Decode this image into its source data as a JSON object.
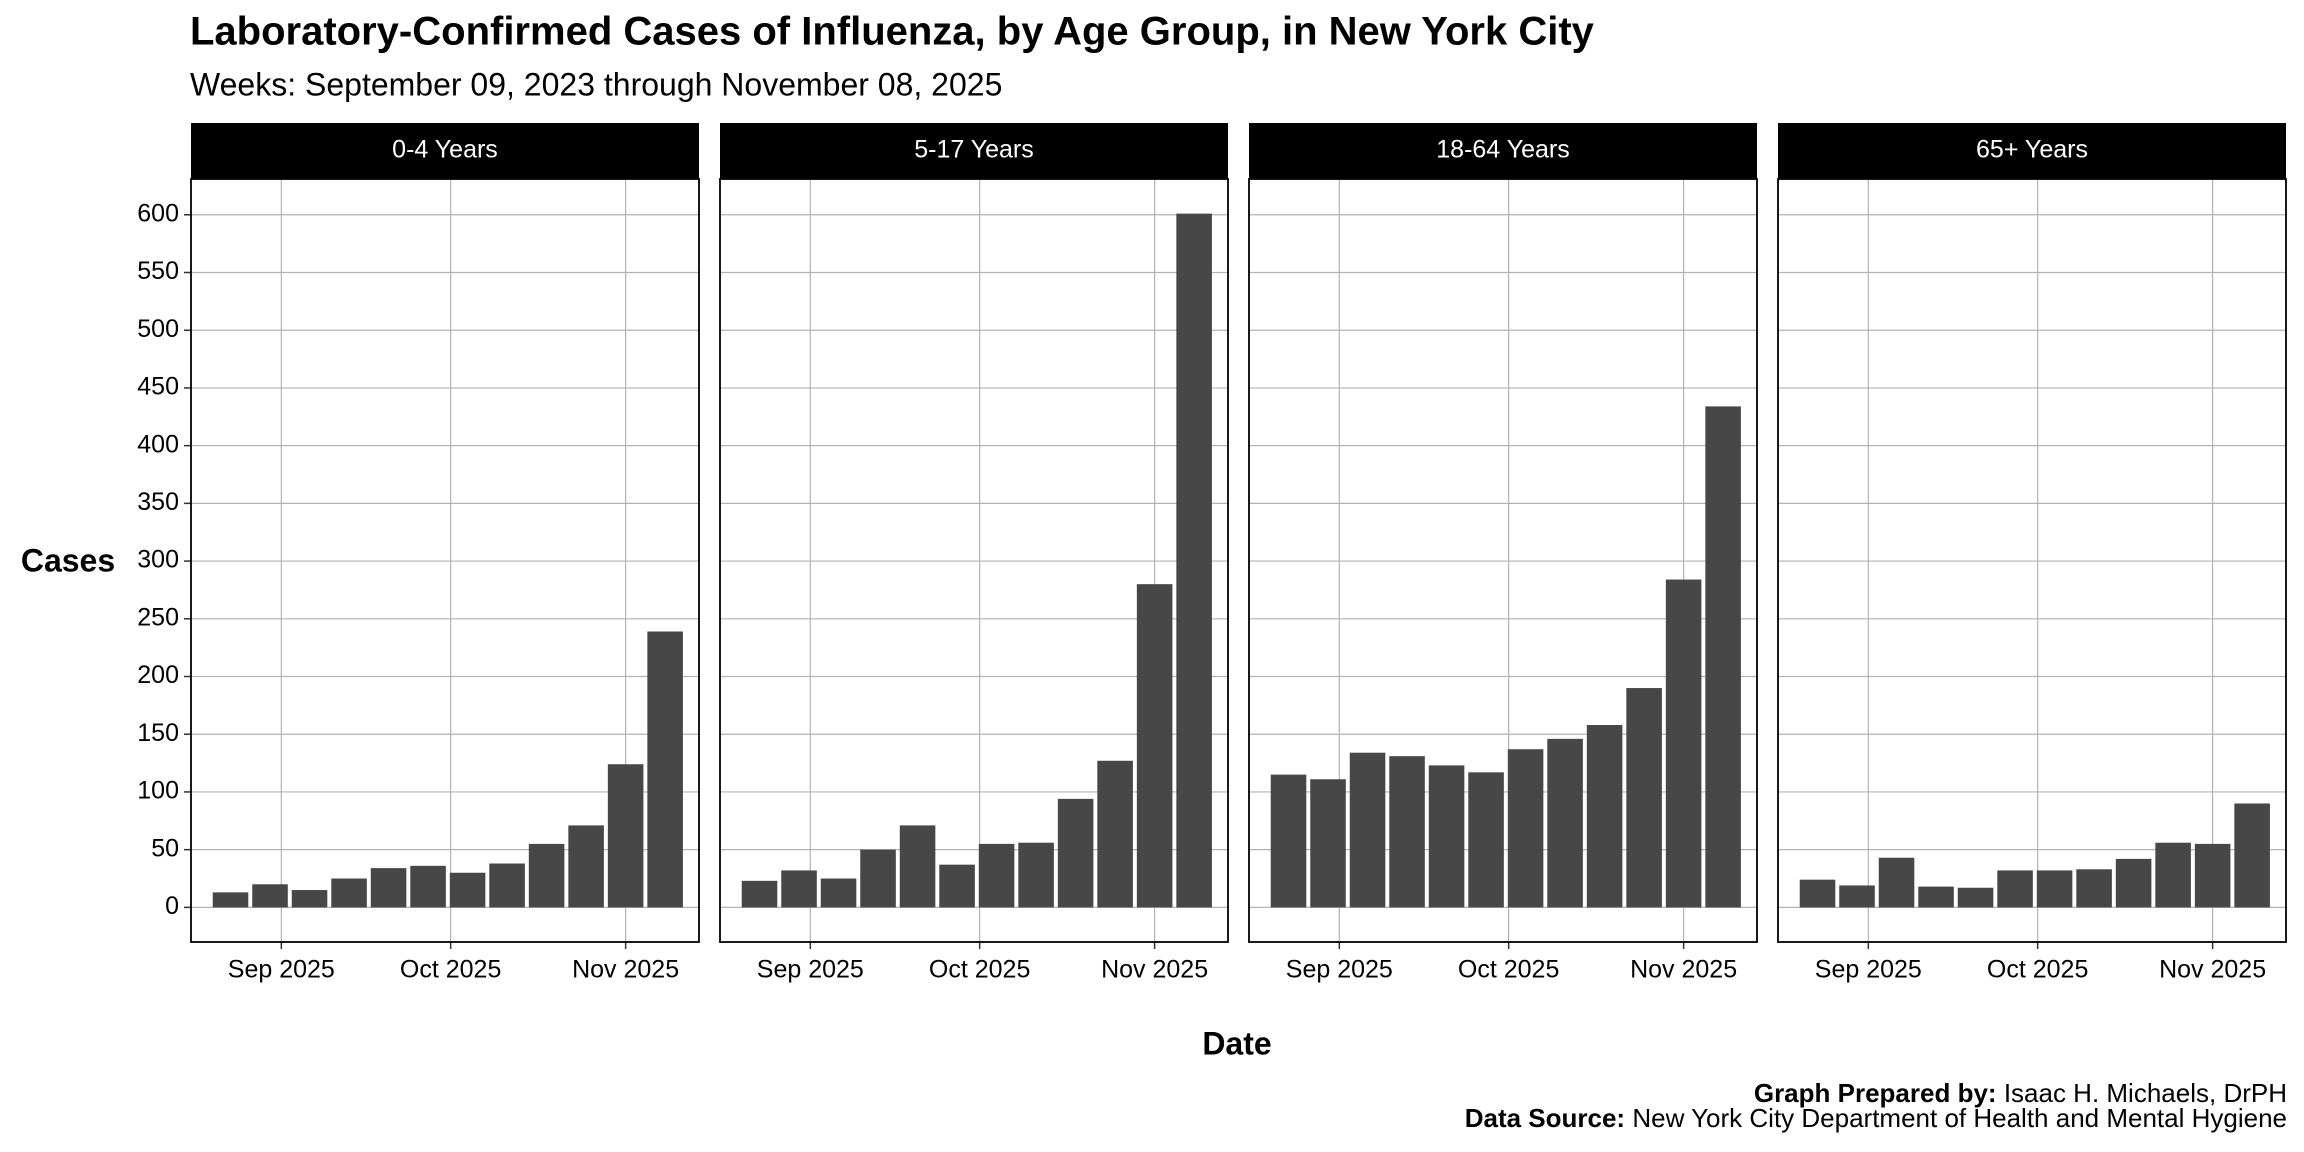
{
  "title": "Laboratory-Confirmed Cases of Influenza, by Age Group, in New York City",
  "subtitle": "Weeks: September 09, 2023 through November 08, 2025",
  "y_label": "Cases",
  "x_label": "Date",
  "credits": [
    {
      "label": "Graph Prepared by:",
      "text": "Isaac H. Michaels, DrPH"
    },
    {
      "label": "Data Source:",
      "text": "New York City Department of Health and Mental Hygiene"
    }
  ],
  "chart_data": [
    {
      "type": "bar",
      "title": "0-4 Years",
      "color": "#474747",
      "grid": true,
      "x": [
        "2025-08-23",
        "2025-08-30",
        "2025-09-06",
        "2025-09-13",
        "2025-09-20",
        "2025-09-27",
        "2025-10-04",
        "2025-10-11",
        "2025-10-18",
        "2025-10-25",
        "2025-11-01",
        "2025-11-08"
      ],
      "values": [
        13,
        20,
        15,
        25,
        34,
        36,
        30,
        38,
        55,
        71,
        124,
        239
      ],
      "xlim": [
        "2025-08-16",
        "2025-11-14"
      ],
      "xticks": [
        {
          "value": "2025-09-01",
          "label": "Sep 2025"
        },
        {
          "value": "2025-10-01",
          "label": "Oct 2025"
        },
        {
          "value": "2025-11-01",
          "label": "Nov 2025"
        }
      ],
      "ylim": [
        -30,
        631
      ],
      "yticks": [
        0,
        50,
        100,
        150,
        200,
        250,
        300,
        350,
        400,
        450,
        500,
        550,
        600
      ]
    },
    {
      "type": "bar",
      "title": "5-17 Years",
      "color": "#474747",
      "grid": true,
      "x": [
        "2025-08-23",
        "2025-08-30",
        "2025-09-06",
        "2025-09-13",
        "2025-09-20",
        "2025-09-27",
        "2025-10-04",
        "2025-10-11",
        "2025-10-18",
        "2025-10-25",
        "2025-11-01",
        "2025-11-08"
      ],
      "values": [
        23,
        32,
        25,
        50,
        71,
        37,
        55,
        56,
        94,
        127,
        280,
        601
      ],
      "xlim": [
        "2025-08-16",
        "2025-11-14"
      ],
      "xticks": [
        {
          "value": "2025-09-01",
          "label": "Sep 2025"
        },
        {
          "value": "2025-10-01",
          "label": "Oct 2025"
        },
        {
          "value": "2025-11-01",
          "label": "Nov 2025"
        }
      ],
      "ylim": [
        -30,
        631
      ],
      "yticks": [
        0,
        50,
        100,
        150,
        200,
        250,
        300,
        350,
        400,
        450,
        500,
        550,
        600
      ]
    },
    {
      "type": "bar",
      "title": "18-64 Years",
      "color": "#474747",
      "grid": true,
      "x": [
        "2025-08-23",
        "2025-08-30",
        "2025-09-06",
        "2025-09-13",
        "2025-09-20",
        "2025-09-27",
        "2025-10-04",
        "2025-10-11",
        "2025-10-18",
        "2025-10-25",
        "2025-11-01",
        "2025-11-08"
      ],
      "values": [
        115,
        111,
        134,
        131,
        123,
        117,
        137,
        146,
        158,
        190,
        284,
        434
      ],
      "xlim": [
        "2025-08-16",
        "2025-11-14"
      ],
      "xticks": [
        {
          "value": "2025-09-01",
          "label": "Sep 2025"
        },
        {
          "value": "2025-10-01",
          "label": "Oct 2025"
        },
        {
          "value": "2025-11-01",
          "label": "Nov 2025"
        }
      ],
      "ylim": [
        -30,
        631
      ],
      "yticks": [
        0,
        50,
        100,
        150,
        200,
        250,
        300,
        350,
        400,
        450,
        500,
        550,
        600
      ]
    },
    {
      "type": "bar",
      "title": "65+ Years",
      "color": "#474747",
      "grid": true,
      "x": [
        "2025-08-23",
        "2025-08-30",
        "2025-09-06",
        "2025-09-13",
        "2025-09-20",
        "2025-09-27",
        "2025-10-04",
        "2025-10-11",
        "2025-10-18",
        "2025-10-25",
        "2025-11-01",
        "2025-11-08"
      ],
      "values": [
        24,
        19,
        43,
        18,
        17,
        32,
        32,
        33,
        42,
        56,
        55,
        90
      ],
      "xlim": [
        "2025-08-16",
        "2025-11-14"
      ],
      "xticks": [
        {
          "value": "2025-09-01",
          "label": "Sep 2025"
        },
        {
          "value": "2025-10-01",
          "label": "Oct 2025"
        },
        {
          "value": "2025-11-01",
          "label": "Nov 2025"
        }
      ],
      "ylim": [
        -30,
        631
      ],
      "yticks": [
        0,
        50,
        100,
        150,
        200,
        250,
        300,
        350,
        400,
        450,
        500,
        550,
        600
      ]
    }
  ]
}
